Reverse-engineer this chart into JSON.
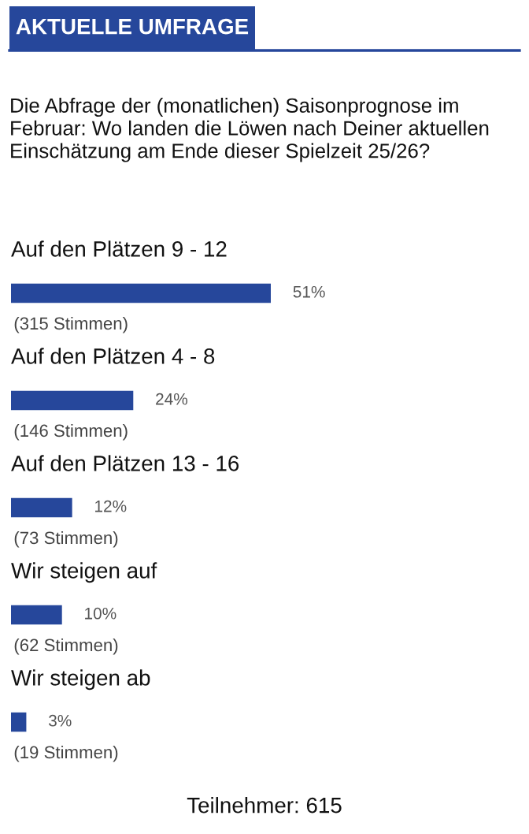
{
  "chart_data": {
    "type": "bar",
    "orientation": "horizontal",
    "title": "AKTUELLE UMFRAGE",
    "subtitle": "Die Abfrage der (monatlichen) Saisonprognose im Februar: Wo landen die Löwen nach Deiner aktuellen Einschätzung am Ende dieser Spielzeit 25/26?",
    "categories": [
      "Auf den Plätzen 9 - 12",
      "Auf den Plätzen 4 - 8",
      "Auf den Plätzen 13 - 16",
      "Wir steigen auf",
      "Wir steigen ab"
    ],
    "values": [
      51,
      24,
      12,
      10,
      3
    ],
    "value_labels": [
      "51%",
      "24%",
      "12%",
      "10%",
      "3%"
    ],
    "color": "#26479b",
    "annotations": [
      "(315 Stimmen)",
      "(146 Stimmen)",
      "(73 Stimmen)",
      "(62 Stimmen)",
      "(19 Stimmen)",
      "Teilnehmer: 615"
    ]
  }
}
